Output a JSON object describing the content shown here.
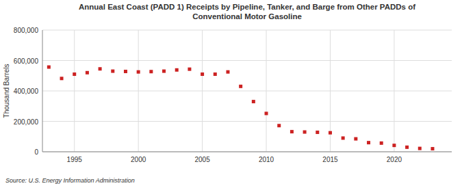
{
  "chart_data": {
    "type": "scatter",
    "title": "Annual East Coast (PADD 1) Receipts by Pipeline, Tanker, and Barge from Other PADDs of\nConventional Motor Gasoline",
    "y_label": "Thousand Barrels",
    "annotations": [
      "Source: U.S. Energy Information Administration"
    ],
    "color": "#cc2222",
    "marker": "square",
    "x": [
      1993,
      1994,
      1995,
      1996,
      1997,
      1998,
      1999,
      2000,
      2001,
      2002,
      2003,
      2004,
      2005,
      2006,
      2007,
      2008,
      2009,
      2010,
      2011,
      2012,
      2013,
      2014,
      2015,
      2016,
      2017,
      2018,
      2019,
      2020,
      2021,
      2022,
      2023
    ],
    "values": [
      557000,
      482000,
      510000,
      520000,
      545000,
      530000,
      528000,
      525000,
      527000,
      530000,
      538000,
      543000,
      510000,
      510000,
      525000,
      430000,
      330000,
      252000,
      172000,
      132000,
      130000,
      128000,
      125000,
      90000,
      85000,
      60000,
      57000,
      42000,
      30000,
      22000,
      20000
    ],
    "xlim": [
      1992.5,
      2024.5
    ],
    "xticks": [
      1995,
      2000,
      2005,
      2010,
      2015,
      2020
    ],
    "ylim": [
      0,
      800000
    ],
    "yticks": [
      0,
      {
        "value": 200000,
        "label": "200,000"
      },
      {
        "value": 400000,
        "label": "400,000"
      },
      {
        "value": 600000,
        "label": "600,000"
      },
      {
        "value": 800000,
        "label": "800,000"
      }
    ],
    "grid": true
  }
}
